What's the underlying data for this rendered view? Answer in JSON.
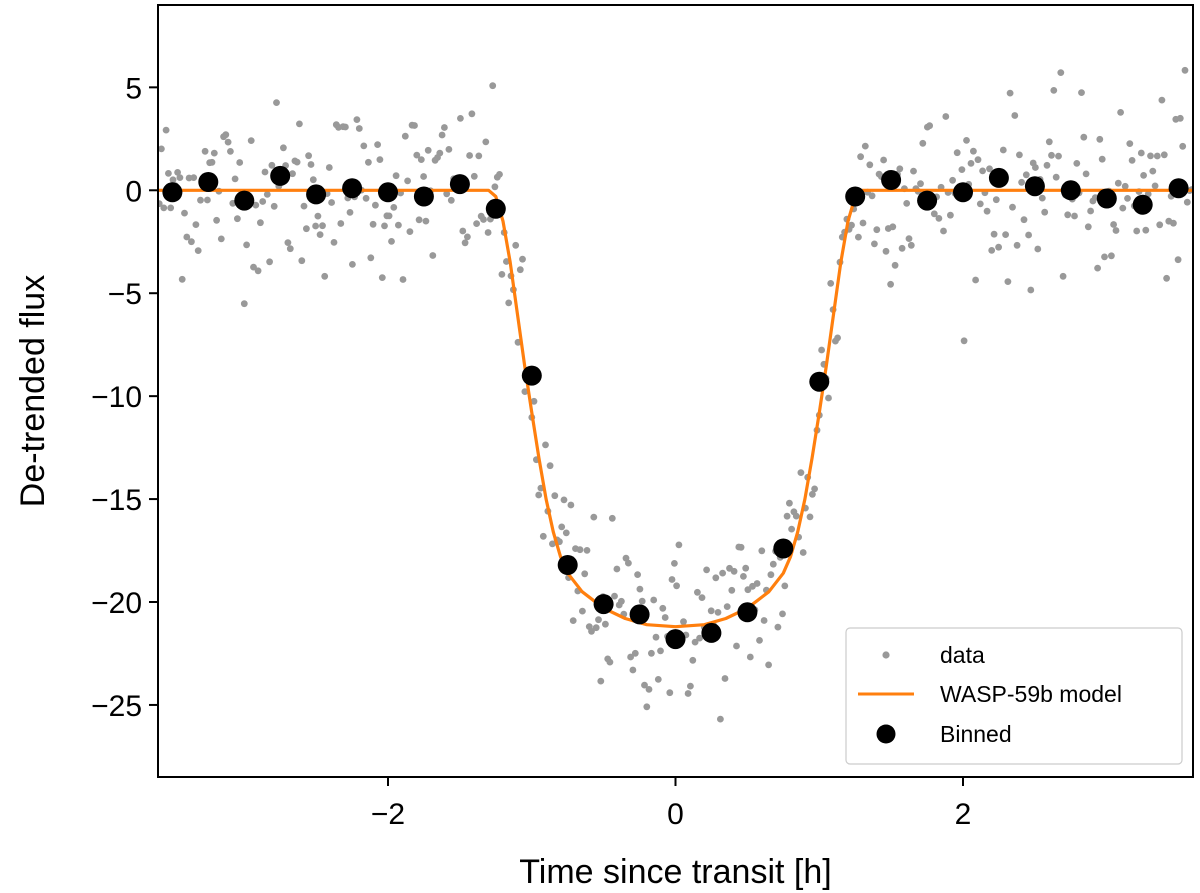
{
  "chart_data": {
    "type": "scatter",
    "title": "",
    "xlabel": "Time since transit [h]",
    "ylabel": "De-trended flux",
    "xlim": [
      -3.6,
      3.6
    ],
    "ylim": [
      -28.5,
      9.0
    ],
    "x_ticks": [
      -2,
      0,
      2
    ],
    "x_tick_labels": [
      "−2",
      "0",
      "2"
    ],
    "y_ticks": [
      5,
      0,
      -5,
      -10,
      -15,
      -20,
      -25
    ],
    "y_tick_labels": [
      "5",
      "0",
      "−5",
      "−10",
      "−15",
      "−20",
      "−25"
    ],
    "grid": false,
    "legend": {
      "position": "lower-right",
      "entries": [
        "data",
        "WASP-59b model",
        "Binned"
      ]
    },
    "colors": {
      "data": "#999999",
      "model": "#ff7f0e",
      "binned": "#000000"
    },
    "series": [
      {
        "name": "data",
        "kind": "scatter",
        "generator": "model plus noise, ~450 points with scatter sigma about 2 flux units",
        "n_points": 450,
        "noise_sigma": 2.1
      },
      {
        "name": "WASP-59b model",
        "kind": "line",
        "x": [
          -3.6,
          -1.3,
          -1.25,
          -1.2,
          -1.15,
          -1.1,
          -1.05,
          -1.0,
          -0.95,
          -0.9,
          -0.85,
          -0.8,
          -0.75,
          -0.65,
          -0.5,
          -0.35,
          -0.2,
          0.0,
          0.2,
          0.35,
          0.5,
          0.65,
          0.75,
          0.8,
          0.85,
          0.9,
          0.95,
          1.0,
          1.05,
          1.1,
          1.15,
          1.2,
          1.25,
          1.3,
          3.6
        ],
        "y": [
          0.0,
          0.0,
          -0.3,
          -1.5,
          -3.5,
          -6.0,
          -8.5,
          -10.8,
          -13.0,
          -15.0,
          -16.6,
          -17.8,
          -18.6,
          -19.5,
          -20.3,
          -20.8,
          -21.1,
          -21.2,
          -21.1,
          -20.8,
          -20.3,
          -19.5,
          -18.6,
          -17.8,
          -16.6,
          -15.0,
          -13.0,
          -10.8,
          -8.5,
          -6.0,
          -3.5,
          -1.5,
          -0.3,
          0.0,
          0.0
        ]
      },
      {
        "name": "Binned",
        "kind": "scatter",
        "x": [
          -3.5,
          -3.25,
          -3.0,
          -2.75,
          -2.5,
          -2.25,
          -2.0,
          -1.75,
          -1.5,
          -1.25,
          -1.0,
          -0.75,
          -0.5,
          -0.25,
          0.0,
          0.25,
          0.5,
          0.75,
          1.0,
          1.25,
          1.5,
          1.75,
          2.0,
          2.25,
          2.5,
          2.75,
          3.0,
          3.25,
          3.5
        ],
        "y": [
          -0.1,
          0.4,
          -0.5,
          0.7,
          -0.2,
          0.1,
          -0.1,
          -0.3,
          0.3,
          -0.9,
          -9.0,
          -18.2,
          -20.1,
          -20.6,
          -21.8,
          -21.5,
          -20.5,
          -17.4,
          -9.3,
          -0.3,
          0.5,
          -0.5,
          -0.1,
          0.6,
          0.2,
          0.0,
          -0.4,
          -0.7,
          0.1
        ]
      }
    ]
  }
}
